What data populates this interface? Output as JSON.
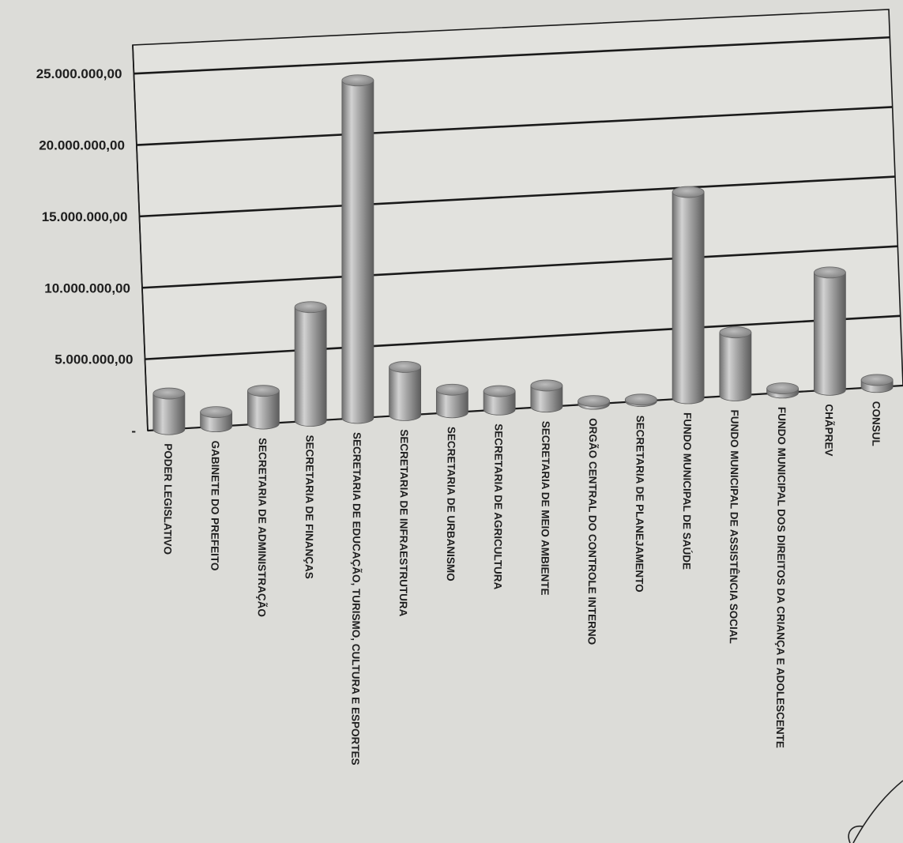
{
  "chart_data": {
    "type": "bar",
    "bar_style": "3d-cylinder",
    "title": "",
    "xlabel": "",
    "ylabel": "",
    "ylim": [
      0,
      27000000
    ],
    "yticks": [
      {
        "value": 0,
        "label": "-"
      },
      {
        "value": 5000000,
        "label": "5.000.000,00"
      },
      {
        "value": 10000000,
        "label": "10.000.000,00"
      },
      {
        "value": 15000000,
        "label": "15.000.000,00"
      },
      {
        "value": 20000000,
        "label": "20.000.000,00"
      },
      {
        "value": 25000000,
        "label": "25.000.000,00"
      }
    ],
    "grid": true,
    "legend": "none",
    "categories": [
      "PODER LEGISLATIVO",
      "GABINETE DO PREFEITO",
      "SECRETARIA DE ADMINISTRAÇÃO",
      "SECRETARIA DE FINANÇAS",
      "SECRETARIA DE EDUCAÇÃO, TURISMO, CULTURA E ESPORTES",
      "SECRETARIA DE INFRAESTRUTURA",
      "SECRETARIA DE URBANISMO",
      "SECRETARIA DE AGRICULTURA",
      "SECRETARIA DE MEIO AMBIENTE",
      "ORGÃO CENTRAL DO CONTROLE INTERNO",
      "SECRETARIA DE PLANEJAMENTO",
      "FUNDO MUNICIPAL DE SAÚDE",
      "FUNDO MUNICIPAL DE ASSISTÊNCIA SOCIAL",
      "FUNDO MUNICIPAL DOS DIREITOS DA CRIANÇA E ADOLESCENTE",
      "CHÃPREV",
      "CONSUL"
    ],
    "values": [
      2500000,
      1000000,
      2300000,
      8000000,
      23800000,
      3400000,
      1600000,
      1300000,
      1500000,
      200000,
      100000,
      14700000,
      4500000,
      300000,
      8400000,
      500000
    ],
    "colors": {
      "bar": "#8e8e8e",
      "grid": "#1a1a1a",
      "background": "#dcdcd8"
    }
  }
}
